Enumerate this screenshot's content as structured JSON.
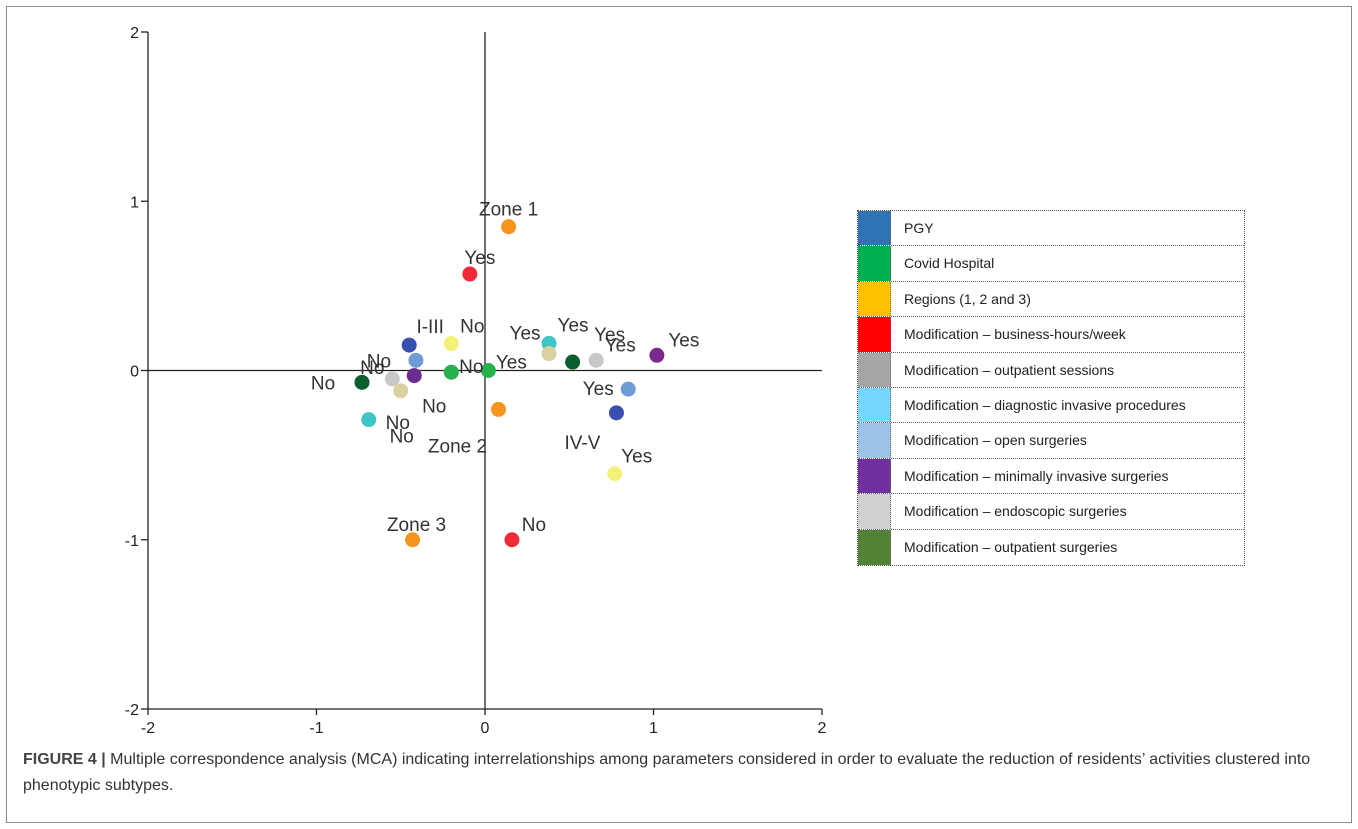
{
  "chart_data": {
    "type": "scatter",
    "title": "",
    "xlabel": "",
    "ylabel": "",
    "xlim": [
      -2,
      2
    ],
    "ylim": [
      -2,
      2
    ],
    "x_ticks": [
      "-2",
      "-1",
      "0",
      "1",
      "2"
    ],
    "y_ticks": [
      "2",
      "1",
      "0",
      "-1",
      "-2"
    ],
    "reference_lines": {
      "x": 0,
      "y": 0
    },
    "points": [
      {
        "label": "Zone 1",
        "x": 0.14,
        "y": 0.85,
        "color": "#f7941d"
      },
      {
        "label": "Yes",
        "x": -0.09,
        "y": 0.57,
        "color": "#ee2b36"
      },
      {
        "label": "I-III",
        "x": -0.45,
        "y": 0.15,
        "color": "#3a50b0"
      },
      {
        "label": "No",
        "x": -0.2,
        "y": 0.16,
        "color": "#f5f07a"
      },
      {
        "label": "Yes",
        "x": 0.38,
        "y": 0.16,
        "color": "#3ec6c6"
      },
      {
        "label": "Yes",
        "x": 0.38,
        "y": 0.1,
        "color": "#d9d2a0"
      },
      {
        "label": "Yes",
        "x": 0.52,
        "y": 0.05,
        "color": "#0b5e2e"
      },
      {
        "label": "Yes",
        "x": 0.66,
        "y": 0.06,
        "color": "#c8c8c8"
      },
      {
        "label": "Yes",
        "x": 1.02,
        "y": 0.09,
        "color": "#7b2a8e"
      },
      {
        "label": "No",
        "x": -0.41,
        "y": 0.06,
        "color": "#6f9bd6"
      },
      {
        "label": "No",
        "x": -0.2,
        "y": -0.01,
        "color": "#27b14b"
      },
      {
        "label": "Yes",
        "x": 0.02,
        "y": 0.0,
        "color": "#27b14b"
      },
      {
        "label": "No",
        "x": -0.42,
        "y": -0.03,
        "color": "#6a2d8f"
      },
      {
        "label": "No",
        "x": -0.73,
        "y": -0.07,
        "color": "#0b5e2e"
      },
      {
        "label": "No",
        "x": -0.55,
        "y": -0.05,
        "color": "#c8c8c8"
      },
      {
        "label": "No",
        "x": -0.5,
        "y": -0.12,
        "color": "#d9d2a0"
      },
      {
        "label": "No",
        "x": -0.69,
        "y": -0.29,
        "color": "#3ec6c6"
      },
      {
        "label": "Zone 2",
        "x": 0.08,
        "y": -0.23,
        "color": "#f7941d"
      },
      {
        "label": "Yes",
        "x": 0.85,
        "y": -0.11,
        "color": "#6f9bd6"
      },
      {
        "label": "IV-V",
        "x": 0.78,
        "y": -0.25,
        "color": "#3a50b0"
      },
      {
        "label": "Yes",
        "x": 0.77,
        "y": -0.61,
        "color": "#f5f07a"
      },
      {
        "label": "Zone 3",
        "x": -0.43,
        "y": -1.0,
        "color": "#f7941d"
      },
      {
        "label": "No",
        "x": 0.16,
        "y": -1.0,
        "color": "#ee2b36"
      }
    ],
    "legend_placement": "right",
    "legend": [
      {
        "label": "PGY",
        "color": "#2e74b5"
      },
      {
        "label": "Covid Hospital",
        "color": "#00b050"
      },
      {
        "label": "Regions (1, 2 and 3)",
        "color": "#ffc000"
      },
      {
        "label": "Modification – business-hours/week",
        "color": "#ff0000"
      },
      {
        "label": "Modification – outpatient sessions",
        "color": "#a6a6a6"
      },
      {
        "label": "Modification – diagnostic invasive procedures",
        "color": "#75d7fb"
      },
      {
        "label": "Modification – open surgeries",
        "color": "#9dc3e6"
      },
      {
        "label": "Modification – minimally invasive surgeries",
        "color": "#7030a0"
      },
      {
        "label": "Modification – endoscopic surgeries",
        "color": "#d0d0d0"
      },
      {
        "label": "Modification – outpatient surgeries",
        "color": "#548235"
      }
    ]
  },
  "caption": {
    "lead": "FIGURE 4 |",
    "text": " Multiple correspondence analysis (MCA) indicating interrelationships among parameters considered in order to evaluate the reduction of residents’ activities clustered into phenotypic subtypes."
  }
}
